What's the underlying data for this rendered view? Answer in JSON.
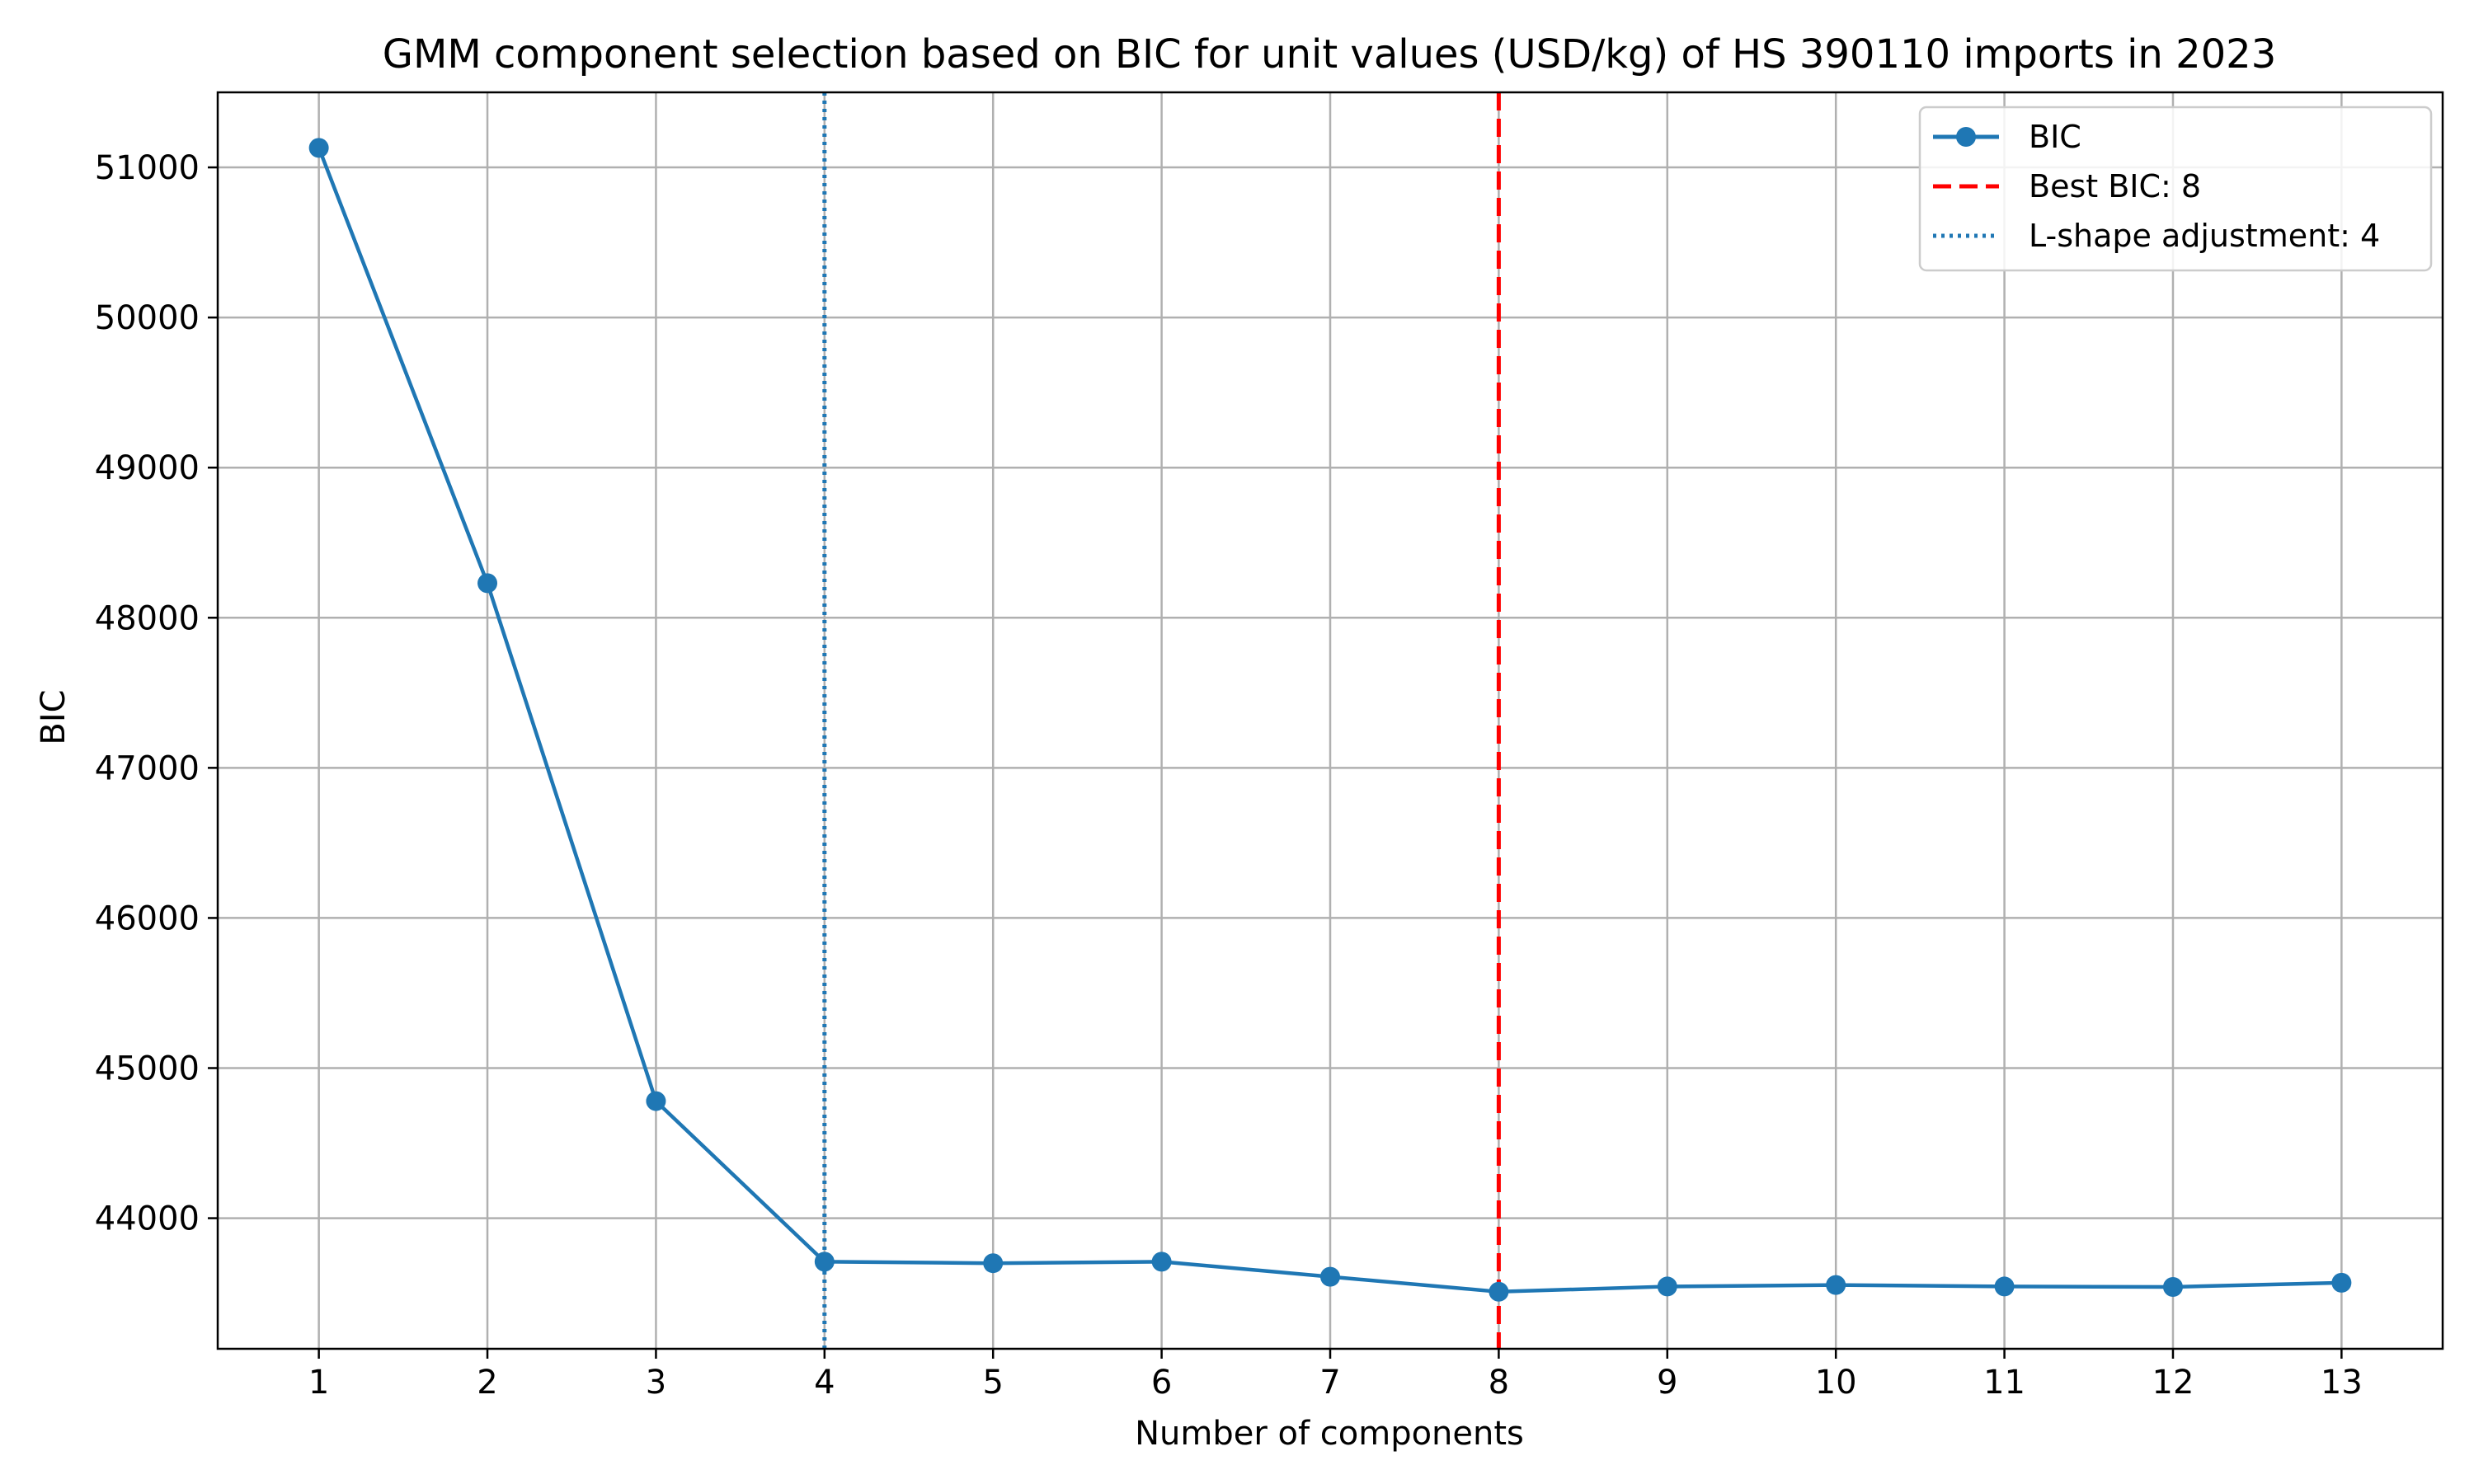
{
  "chart_data": {
    "type": "line",
    "title": "GMM component selection based on BIC for unit values (USD/kg) of HS 390110 imports in 2023",
    "xlabel": "Number of components",
    "ylabel": "BIC",
    "x": [
      1,
      2,
      3,
      4,
      5,
      6,
      7,
      8,
      9,
      10,
      11,
      12,
      13
    ],
    "series": [
      {
        "name": "BIC",
        "values": [
          51130,
          48230,
          44780,
          43710,
          43700,
          43710,
          43610,
          43510,
          43545,
          43555,
          43545,
          43542,
          43570
        ],
        "color": "#1f77b4",
        "marker": "circle"
      }
    ],
    "reference_lines": [
      {
        "label": "Best BIC: 8",
        "x": 8,
        "color": "#ff0000",
        "style": "dashed"
      },
      {
        "label": "L-shape adjustment: 4",
        "x": 4,
        "color": "#1f77b4",
        "style": "dotted"
      }
    ],
    "xlim": [
      0.4,
      13.6
    ],
    "ylim": [
      43130,
      51500
    ],
    "xticks": [
      1,
      2,
      3,
      4,
      5,
      6,
      7,
      8,
      9,
      10,
      11,
      12,
      13
    ],
    "yticks": [
      44000,
      45000,
      46000,
      47000,
      48000,
      49000,
      50000,
      51000
    ],
    "grid": true,
    "legend_position": "top-right"
  }
}
